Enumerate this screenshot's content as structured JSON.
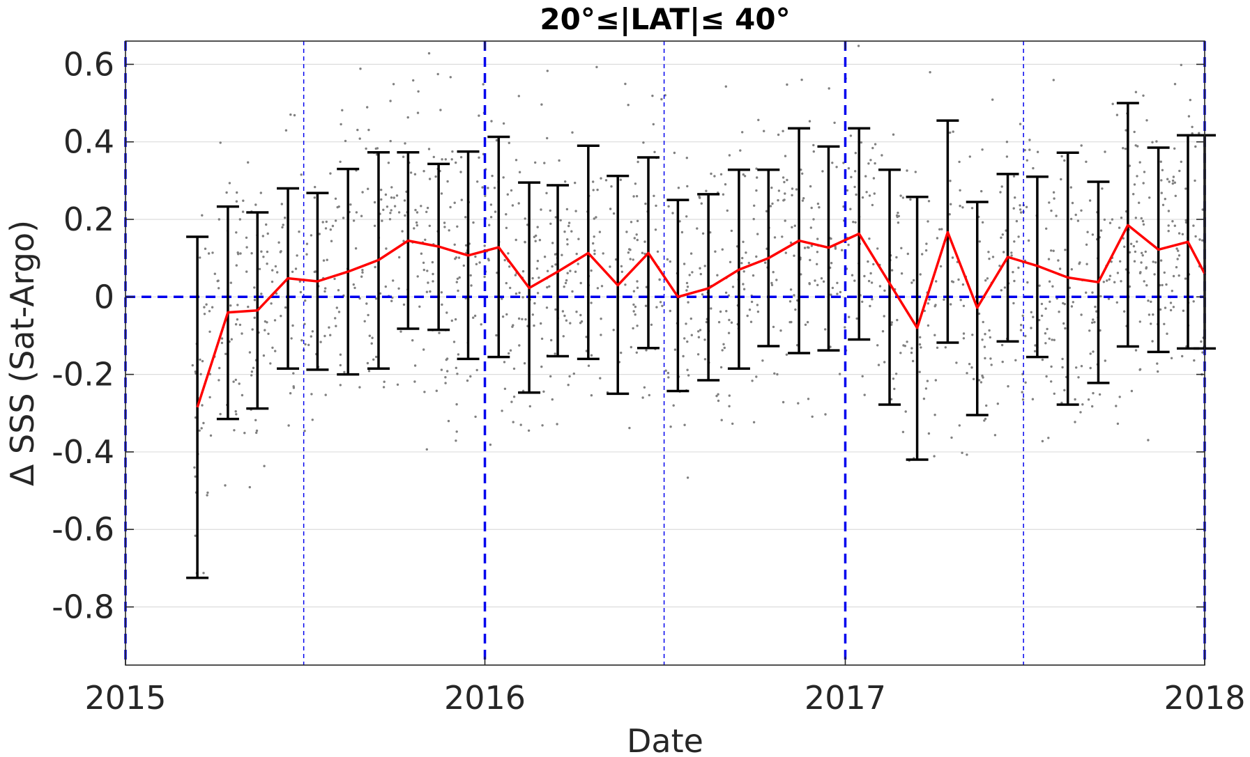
{
  "chart_data": {
    "type": "line",
    "title": "20°≤|LAT|≤ 40°",
    "xlabel": "Date",
    "ylabel": "Δ SSS (Sat-Argo)",
    "x_axis": "date",
    "xlim": [
      "2015-01-01",
      "2018-01-01"
    ],
    "ylim": [
      -0.95,
      0.66
    ],
    "x_ticks": [
      "2015-01-01",
      "2016-01-01",
      "2017-01-01",
      "2018-01-01"
    ],
    "x_tick_labels": [
      "2015",
      "2016",
      "2017",
      "2018"
    ],
    "y_ticks": [
      -0.8,
      -0.6,
      -0.4,
      -0.2,
      0,
      0.2,
      0.4,
      0.6
    ],
    "y_tick_labels": [
      "-0.8",
      "-0.6",
      "-0.4",
      "-0.2",
      "0",
      "0.2",
      "0.4",
      "0.6"
    ],
    "grid": true,
    "colors": {
      "mean_line": "#ff0000",
      "error_bars": "#000000",
      "reference_lines": "#0000ee",
      "scatter": "#808080"
    },
    "reference_lines": {
      "horizontal_zero": 0,
      "year_boundaries": [
        "2015-01-01",
        "2016-01-01",
        "2017-01-01",
        "2018-01-01"
      ],
      "mid_year": [
        "2015-07-01",
        "2016-07-01",
        "2017-07-01"
      ]
    },
    "series": [
      {
        "type": "errorbar_line",
        "x": [
          "2015-03-15",
          "2015-04-15",
          "2015-05-15",
          "2015-06-15",
          "2015-07-15",
          "2015-08-15",
          "2015-09-15",
          "2015-10-15",
          "2015-11-15",
          "2015-12-15",
          "2016-01-15",
          "2016-02-15",
          "2016-03-15",
          "2016-04-15",
          "2016-05-15",
          "2016-06-15",
          "2016-07-15",
          "2016-08-15",
          "2016-09-15",
          "2016-10-15",
          "2016-11-15",
          "2016-12-15",
          "2017-01-15",
          "2017-02-15",
          "2017-03-15",
          "2017-04-15",
          "2017-05-15",
          "2017-06-15",
          "2017-07-15",
          "2017-08-15",
          "2017-09-15",
          "2017-10-15",
          "2017-11-15",
          "2017-12-15",
          "2018-01-01"
        ],
        "y": [
          -0.285,
          -0.04,
          -0.035,
          0.048,
          0.04,
          0.065,
          0.095,
          0.145,
          0.13,
          0.107,
          0.128,
          0.023,
          0.065,
          0.113,
          0.03,
          0.113,
          0.0,
          0.022,
          0.07,
          0.1,
          0.145,
          0.127,
          0.163,
          0.035,
          -0.08,
          0.167,
          -0.028,
          0.103,
          0.08,
          0.05,
          0.038,
          0.185,
          0.122,
          0.142,
          0.06
        ],
        "lower": [
          -0.725,
          -0.315,
          -0.288,
          -0.185,
          -0.188,
          -0.2,
          -0.185,
          -0.082,
          -0.085,
          -0.16,
          -0.155,
          -0.247,
          -0.153,
          -0.16,
          -0.25,
          -0.132,
          -0.243,
          -0.215,
          -0.185,
          -0.127,
          -0.145,
          -0.138,
          -0.11,
          -0.278,
          -0.42,
          -0.118,
          -0.305,
          -0.115,
          -0.155,
          -0.278,
          -0.222,
          -0.128,
          -0.142,
          -0.133,
          -0.133
        ],
        "upper": [
          0.155,
          0.233,
          0.218,
          0.28,
          0.268,
          0.33,
          0.373,
          0.373,
          0.343,
          0.375,
          0.413,
          0.295,
          0.288,
          0.39,
          0.312,
          0.36,
          0.25,
          0.265,
          0.328,
          0.328,
          0.435,
          0.388,
          0.435,
          0.328,
          0.258,
          0.455,
          0.245,
          0.317,
          0.31,
          0.372,
          0.297,
          0.5,
          0.385,
          0.417,
          0.417
        ]
      }
    ]
  }
}
